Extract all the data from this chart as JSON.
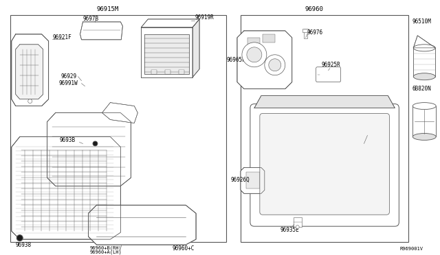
{
  "bg_color": "#ffffff",
  "line_color": "#555555",
  "text_color": "#000000",
  "ref_code": "R969001V",
  "left_box_label": "96915M",
  "right_box_label": "96960",
  "fig_w": 6.4,
  "fig_h": 3.72,
  "dpi": 100
}
